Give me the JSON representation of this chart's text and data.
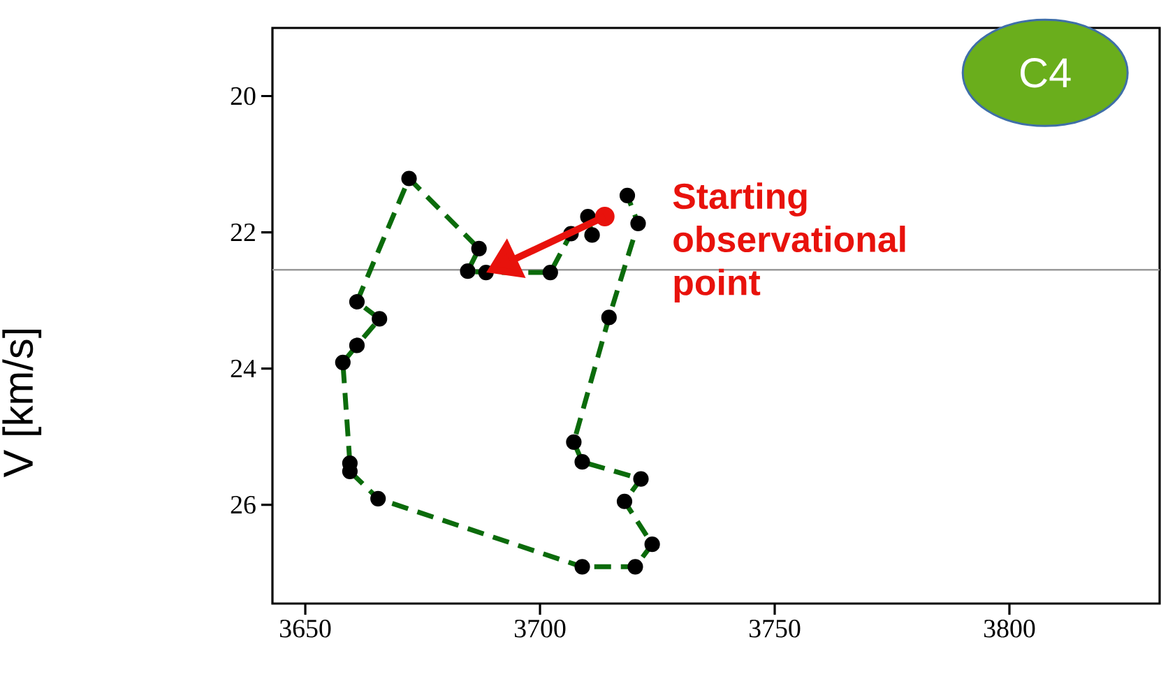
{
  "chart_data": {
    "type": "line",
    "ylabel": "V [km/s]",
    "annotations": [
      "Starting observational point",
      "C4"
    ],
    "xlim": [
      3643,
      3832
    ],
    "ylim": [
      27.45,
      19
    ],
    "xticks": [
      3650,
      3700,
      3750,
      3800
    ],
    "yticks": [
      20,
      22,
      24,
      26
    ],
    "grid": false,
    "marker": "circle",
    "line_style": "dashed",
    "ref_lines": [
      {
        "axis": "y",
        "value": 22.55,
        "color": "#999999"
      }
    ],
    "series": [
      {
        "color": "#0b6b0b",
        "x": [
          3713.8,
          3710.2,
          3711.1,
          3706.6,
          3702.2,
          3688.5,
          3684.6,
          3687.0,
          3672.1,
          3661.0,
          3665.8,
          3661.0,
          3658.0,
          3659.5,
          3659.5,
          3665.5,
          3709.0,
          3720.3,
          3723.9,
          3718.0,
          3721.5,
          3709.0,
          3707.2,
          3714.7,
          3720.9,
          3718.6
        ],
        "values": [
          21.77,
          21.77,
          22.04,
          22.02,
          22.59,
          22.59,
          22.57,
          22.24,
          21.21,
          23.02,
          23.27,
          23.66,
          23.91,
          25.39,
          25.51,
          25.91,
          26.91,
          26.91,
          26.58,
          25.95,
          25.62,
          25.37,
          25.08,
          23.25,
          21.87,
          21.46
        ]
      }
    ]
  }
}
